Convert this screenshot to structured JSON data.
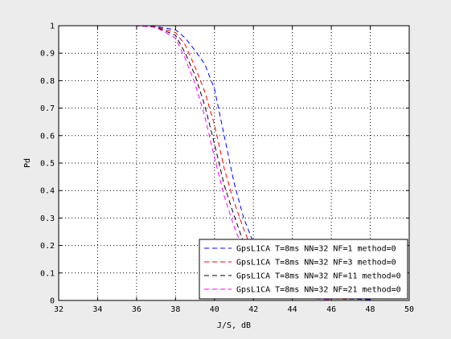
{
  "chart_data": {
    "type": "line",
    "title": "",
    "xlabel": "J/S, dB",
    "ylabel": "Pd",
    "xlim": [
      32,
      50
    ],
    "ylim": [
      0,
      1
    ],
    "xticks": [
      32,
      34,
      36,
      38,
      40,
      42,
      44,
      46,
      48,
      50
    ],
    "yticks": [
      0,
      0.1,
      0.2,
      0.3,
      0.4,
      0.5,
      0.6,
      0.7,
      0.8,
      0.9,
      1
    ],
    "xtick_labels": [
      "32",
      "34",
      "36",
      "38",
      "40",
      "42",
      "44",
      "46",
      "48",
      "50"
    ],
    "ytick_labels": [
      "0",
      "0.1",
      "0.2",
      "0.3",
      "0.4",
      "0.5",
      "0.6",
      "0.7",
      "0.8",
      "0.9",
      "1"
    ],
    "grid": true,
    "legend_position": "bottom-right",
    "line_style": "dashed",
    "series": [
      {
        "name": "GpsL1CA T=8ms NN=32 NF=1 method=0",
        "color": "#0000ff",
        "x": [
          33,
          34,
          35,
          36,
          37,
          38,
          38.5,
          39,
          39.5,
          40,
          40.5,
          41,
          41.5,
          42,
          42.5,
          43,
          43.5,
          44,
          45,
          46,
          47,
          48
        ],
        "y": [
          1,
          1,
          1,
          1,
          0.997,
          0.985,
          0.955,
          0.91,
          0.86,
          0.77,
          0.6,
          0.43,
          0.3,
          0.21,
          0.14,
          0.09,
          0.05,
          0.03,
          0.015,
          0.008,
          0.005,
          0.003
        ]
      },
      {
        "name": "GpsL1CA T=8ms NN=32 NF=3 method=0",
        "color": "#ff0000",
        "x": [
          33,
          34,
          35,
          36,
          37,
          38,
          38.5,
          39,
          39.5,
          40,
          40.5,
          41,
          41.5,
          42,
          42.5,
          43,
          43.5,
          44,
          45,
          46,
          47
        ],
        "y": [
          1,
          1,
          1,
          1,
          0.996,
          0.975,
          0.93,
          0.85,
          0.76,
          0.64,
          0.48,
          0.36,
          0.26,
          0.17,
          0.11,
          0.07,
          0.04,
          0.02,
          0.01,
          0.006,
          0.004
        ]
      },
      {
        "name": "GpsL1CA T=8ms NN=32 NF=11 method=0",
        "color": "#000000",
        "x": [
          33,
          34,
          35,
          36,
          37,
          38,
          38.5,
          39,
          39.5,
          40,
          40.5,
          41,
          41.5,
          42,
          42.5,
          43,
          43.5,
          44,
          45,
          46
        ],
        "y": [
          1,
          1,
          1,
          1,
          0.995,
          0.965,
          0.9,
          0.82,
          0.71,
          0.57,
          0.42,
          0.31,
          0.21,
          0.13,
          0.08,
          0.05,
          0.03,
          0.015,
          0.008,
          0.004
        ]
      },
      {
        "name": "GpsL1CA T=8ms NN=32 NF=21 method=0",
        "color": "#ff00ff",
        "x": [
          33,
          34,
          35,
          36,
          37,
          38,
          38.5,
          39,
          39.5,
          40,
          40.5,
          41,
          41.5,
          42,
          42.5,
          43,
          43.5,
          44,
          45,
          46
        ],
        "y": [
          1,
          1,
          1,
          1,
          0.994,
          0.955,
          0.88,
          0.79,
          0.67,
          0.52,
          0.38,
          0.27,
          0.18,
          0.11,
          0.07,
          0.04,
          0.02,
          0.01,
          0.006,
          0.003
        ]
      }
    ]
  }
}
